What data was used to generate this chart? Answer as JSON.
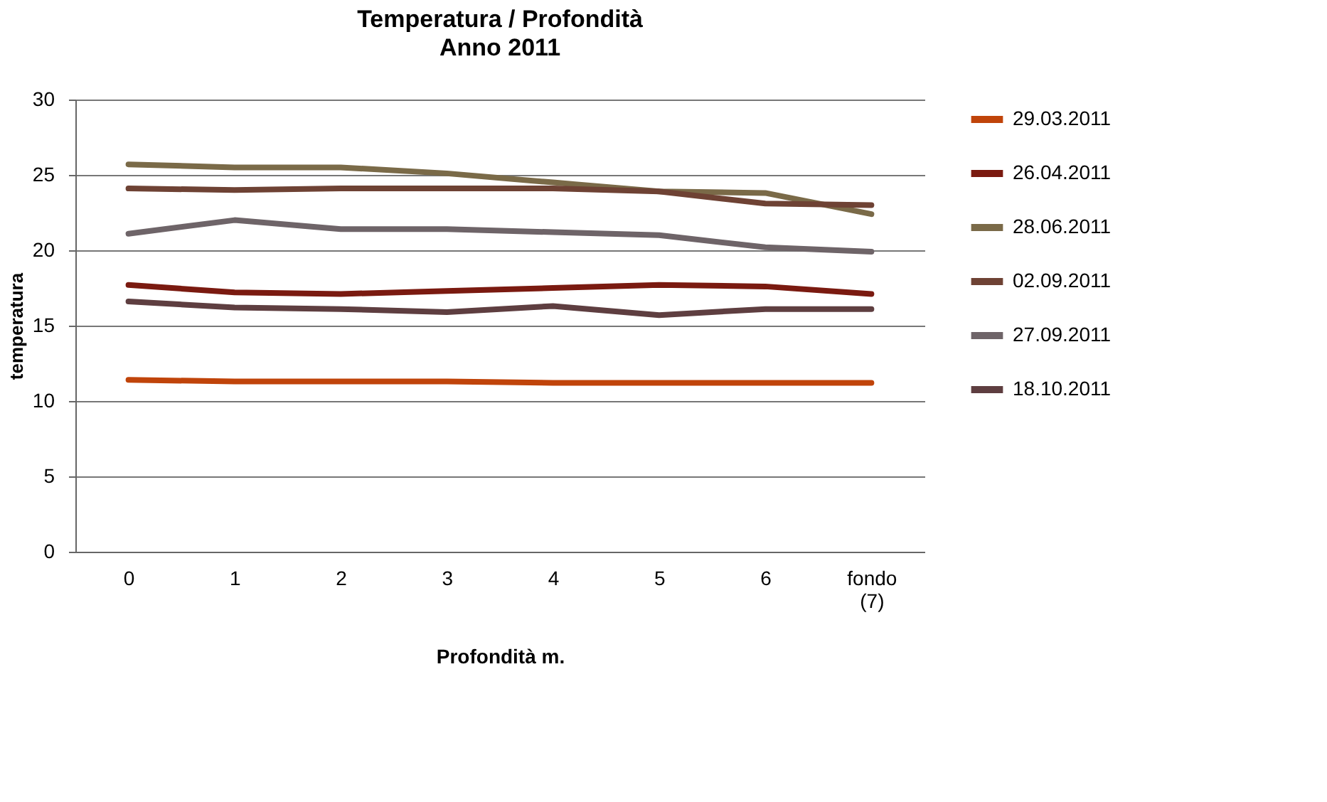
{
  "chart_data": {
    "type": "line",
    "title": "Temperatura / Profondità",
    "subtitle": "Anno 2011",
    "xlabel": "Profondità m.",
    "ylabel": "temperatura",
    "categories": [
      "0",
      "1",
      "2",
      "3",
      "4",
      "5",
      "6",
      "fondo (7)"
    ],
    "series": [
      {
        "name": "29.03.2011",
        "color": "#c0440a",
        "values": [
          11.4,
          11.3,
          11.3,
          11.3,
          11.2,
          11.2,
          11.2,
          11.2
        ]
      },
      {
        "name": "26.04.2011",
        "color": "#7a1a10",
        "values": [
          17.7,
          17.2,
          17.1,
          17.3,
          17.5,
          17.7,
          17.6,
          17.1
        ]
      },
      {
        "name": "28.06.2011",
        "color": "#7a6a48",
        "values": [
          25.7,
          25.5,
          25.5,
          25.1,
          24.5,
          23.9,
          23.8,
          22.4
        ]
      },
      {
        "name": "02.09.2011",
        "color": "#6e4234",
        "values": [
          24.1,
          24.0,
          24.1,
          24.1,
          24.1,
          23.9,
          23.1,
          23.0
        ]
      },
      {
        "name": "27.09.2011",
        "color": "#6e6468",
        "values": [
          21.1,
          22.0,
          21.4,
          21.4,
          21.2,
          21.0,
          20.2,
          19.9
        ]
      },
      {
        "name": "18.10.2011",
        "color": "#5e3e40",
        "values": [
          16.6,
          16.2,
          16.1,
          15.9,
          16.3,
          15.7,
          16.1,
          16.1
        ]
      }
    ],
    "ylim": [
      0,
      30
    ],
    "yticks": [
      0,
      5,
      10,
      15,
      20,
      25,
      30
    ],
    "grid": "y",
    "legend": "right",
    "marker": "none",
    "line_style": "solid"
  }
}
